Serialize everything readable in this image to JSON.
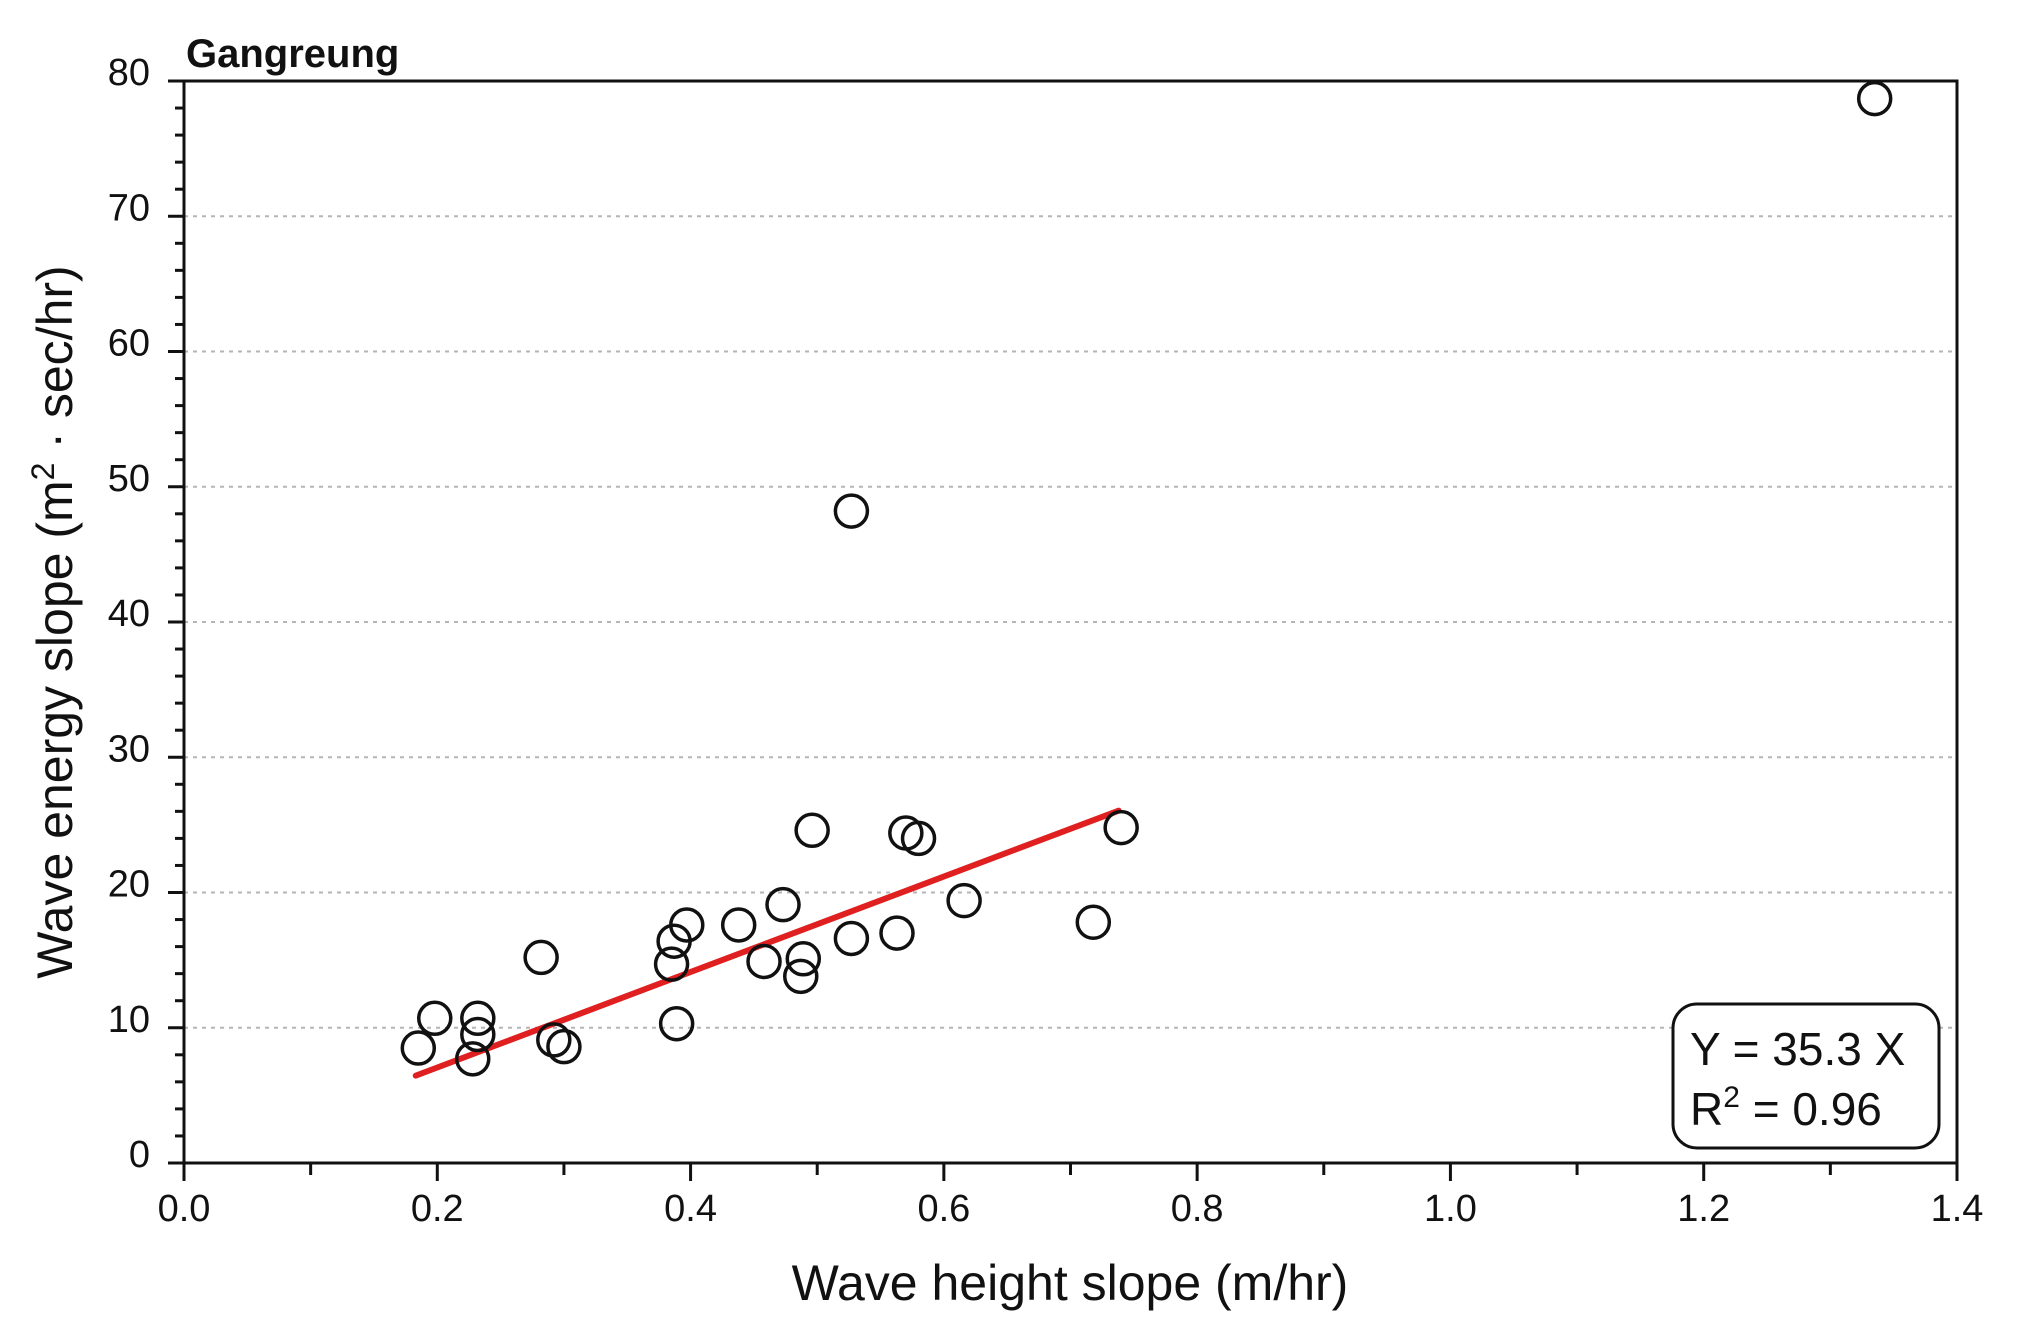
{
  "chart_data": {
    "type": "scatter",
    "title": "Gangreung",
    "xlabel": "Wave height slope (m/hr)",
    "ylabel_main": "Wave energy slope (m",
    "ylabel_sup": "2",
    "ylabel_rest": " · sec/hr)",
    "xlim": [
      0.0,
      1.4
    ],
    "ylim": [
      0,
      80
    ],
    "x_ticks": [
      "0.0",
      "0.2",
      "0.4",
      "0.6",
      "0.8",
      "1.0",
      "1.2",
      "1.4"
    ],
    "y_ticks": [
      "0",
      "10",
      "20",
      "30",
      "40",
      "50",
      "60",
      "70",
      "80"
    ],
    "grid": "horizontal dashed",
    "marker": "open circle",
    "points": [
      {
        "x": 0.185,
        "y": 8.5
      },
      {
        "x": 0.198,
        "y": 10.7
      },
      {
        "x": 0.228,
        "y": 7.7
      },
      {
        "x": 0.232,
        "y": 9.5
      },
      {
        "x": 0.232,
        "y": 10.7
      },
      {
        "x": 0.282,
        "y": 15.2
      },
      {
        "x": 0.292,
        "y": 9.1
      },
      {
        "x": 0.3,
        "y": 8.6
      },
      {
        "x": 0.385,
        "y": 14.7
      },
      {
        "x": 0.387,
        "y": 16.4
      },
      {
        "x": 0.389,
        "y": 10.3
      },
      {
        "x": 0.397,
        "y": 17.6
      },
      {
        "x": 0.438,
        "y": 17.6
      },
      {
        "x": 0.458,
        "y": 14.9
      },
      {
        "x": 0.473,
        "y": 19.1
      },
      {
        "x": 0.487,
        "y": 13.8
      },
      {
        "x": 0.489,
        "y": 15.1
      },
      {
        "x": 0.496,
        "y": 24.6
      },
      {
        "x": 0.527,
        "y": 16.6
      },
      {
        "x": 0.527,
        "y": 48.2
      },
      {
        "x": 0.563,
        "y": 17.0
      },
      {
        "x": 0.57,
        "y": 24.4
      },
      {
        "x": 0.58,
        "y": 24.0
      },
      {
        "x": 0.616,
        "y": 19.4
      },
      {
        "x": 0.718,
        "y": 17.8
      },
      {
        "x": 0.74,
        "y": 24.8
      },
      {
        "x": 1.335,
        "y": 78.7
      }
    ],
    "fit_line": {
      "x_start": 0.183,
      "x_end": 0.738,
      "slope": 35.3
    },
    "annotation": {
      "line1": "Y = 35.3 X",
      "line2_pre": "R",
      "line2_sup": "2",
      "line2_post": " = 0.96",
      "placement": "bottom-right"
    },
    "colors": {
      "fit_line": "#e02020",
      "markers": "#111111",
      "grid": "#b5b5b5"
    }
  }
}
